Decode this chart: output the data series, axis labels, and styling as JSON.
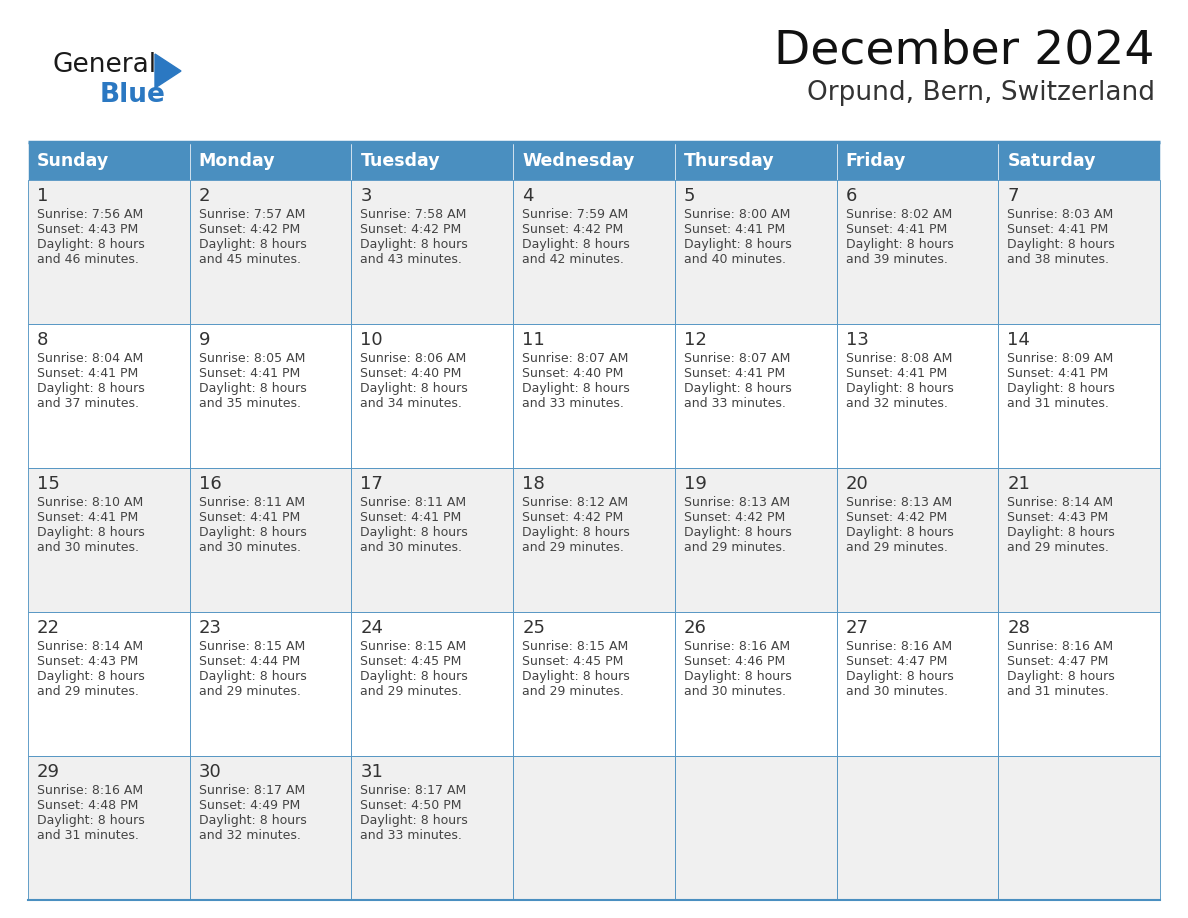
{
  "title": "December 2024",
  "subtitle": "Orpund, Bern, Switzerland",
  "header_color": "#4A8FC0",
  "header_text_color": "#FFFFFF",
  "cell_bg_color": "#FFFFFF",
  "row_alt_bg_color": "#F0F0F0",
  "border_color": "#4A8FC0",
  "text_color": "#444444",
  "day_num_color": "#333333",
  "day_headers": [
    "Sunday",
    "Monday",
    "Tuesday",
    "Wednesday",
    "Thursday",
    "Friday",
    "Saturday"
  ],
  "weeks": [
    [
      {
        "day": 1,
        "sunrise": "7:56 AM",
        "sunset": "4:43 PM",
        "daylight": "8 hours and 46 minutes."
      },
      {
        "day": 2,
        "sunrise": "7:57 AM",
        "sunset": "4:42 PM",
        "daylight": "8 hours and 45 minutes."
      },
      {
        "day": 3,
        "sunrise": "7:58 AM",
        "sunset": "4:42 PM",
        "daylight": "8 hours and 43 minutes."
      },
      {
        "day": 4,
        "sunrise": "7:59 AM",
        "sunset": "4:42 PM",
        "daylight": "8 hours and 42 minutes."
      },
      {
        "day": 5,
        "sunrise": "8:00 AM",
        "sunset": "4:41 PM",
        "daylight": "8 hours and 40 minutes."
      },
      {
        "day": 6,
        "sunrise": "8:02 AM",
        "sunset": "4:41 PM",
        "daylight": "8 hours and 39 minutes."
      },
      {
        "day": 7,
        "sunrise": "8:03 AM",
        "sunset": "4:41 PM",
        "daylight": "8 hours and 38 minutes."
      }
    ],
    [
      {
        "day": 8,
        "sunrise": "8:04 AM",
        "sunset": "4:41 PM",
        "daylight": "8 hours and 37 minutes."
      },
      {
        "day": 9,
        "sunrise": "8:05 AM",
        "sunset": "4:41 PM",
        "daylight": "8 hours and 35 minutes."
      },
      {
        "day": 10,
        "sunrise": "8:06 AM",
        "sunset": "4:40 PM",
        "daylight": "8 hours and 34 minutes."
      },
      {
        "day": 11,
        "sunrise": "8:07 AM",
        "sunset": "4:40 PM",
        "daylight": "8 hours and 33 minutes."
      },
      {
        "day": 12,
        "sunrise": "8:07 AM",
        "sunset": "4:41 PM",
        "daylight": "8 hours and 33 minutes."
      },
      {
        "day": 13,
        "sunrise": "8:08 AM",
        "sunset": "4:41 PM",
        "daylight": "8 hours and 32 minutes."
      },
      {
        "day": 14,
        "sunrise": "8:09 AM",
        "sunset": "4:41 PM",
        "daylight": "8 hours and 31 minutes."
      }
    ],
    [
      {
        "day": 15,
        "sunrise": "8:10 AM",
        "sunset": "4:41 PM",
        "daylight": "8 hours and 30 minutes."
      },
      {
        "day": 16,
        "sunrise": "8:11 AM",
        "sunset": "4:41 PM",
        "daylight": "8 hours and 30 minutes."
      },
      {
        "day": 17,
        "sunrise": "8:11 AM",
        "sunset": "4:41 PM",
        "daylight": "8 hours and 30 minutes."
      },
      {
        "day": 18,
        "sunrise": "8:12 AM",
        "sunset": "4:42 PM",
        "daylight": "8 hours and 29 minutes."
      },
      {
        "day": 19,
        "sunrise": "8:13 AM",
        "sunset": "4:42 PM",
        "daylight": "8 hours and 29 minutes."
      },
      {
        "day": 20,
        "sunrise": "8:13 AM",
        "sunset": "4:42 PM",
        "daylight": "8 hours and 29 minutes."
      },
      {
        "day": 21,
        "sunrise": "8:14 AM",
        "sunset": "4:43 PM",
        "daylight": "8 hours and 29 minutes."
      }
    ],
    [
      {
        "day": 22,
        "sunrise": "8:14 AM",
        "sunset": "4:43 PM",
        "daylight": "8 hours and 29 minutes."
      },
      {
        "day": 23,
        "sunrise": "8:15 AM",
        "sunset": "4:44 PM",
        "daylight": "8 hours and 29 minutes."
      },
      {
        "day": 24,
        "sunrise": "8:15 AM",
        "sunset": "4:45 PM",
        "daylight": "8 hours and 29 minutes."
      },
      {
        "day": 25,
        "sunrise": "8:15 AM",
        "sunset": "4:45 PM",
        "daylight": "8 hours and 29 minutes."
      },
      {
        "day": 26,
        "sunrise": "8:16 AM",
        "sunset": "4:46 PM",
        "daylight": "8 hours and 30 minutes."
      },
      {
        "day": 27,
        "sunrise": "8:16 AM",
        "sunset": "4:47 PM",
        "daylight": "8 hours and 30 minutes."
      },
      {
        "day": 28,
        "sunrise": "8:16 AM",
        "sunset": "4:47 PM",
        "daylight": "8 hours and 31 minutes."
      }
    ],
    [
      {
        "day": 29,
        "sunrise": "8:16 AM",
        "sunset": "4:48 PM",
        "daylight": "8 hours and 31 minutes."
      },
      {
        "day": 30,
        "sunrise": "8:17 AM",
        "sunset": "4:49 PM",
        "daylight": "8 hours and 32 minutes."
      },
      {
        "day": 31,
        "sunrise": "8:17 AM",
        "sunset": "4:50 PM",
        "daylight": "8 hours and 33 minutes."
      },
      null,
      null,
      null,
      null
    ]
  ],
  "logo_text_general": "General",
  "logo_text_blue": "Blue",
  "logo_color_general": "#1A1A1A",
  "logo_color_blue": "#2B78C2",
  "logo_triangle_color": "#2B78C2",
  "figwidth": 11.88,
  "figheight": 9.18,
  "dpi": 100
}
